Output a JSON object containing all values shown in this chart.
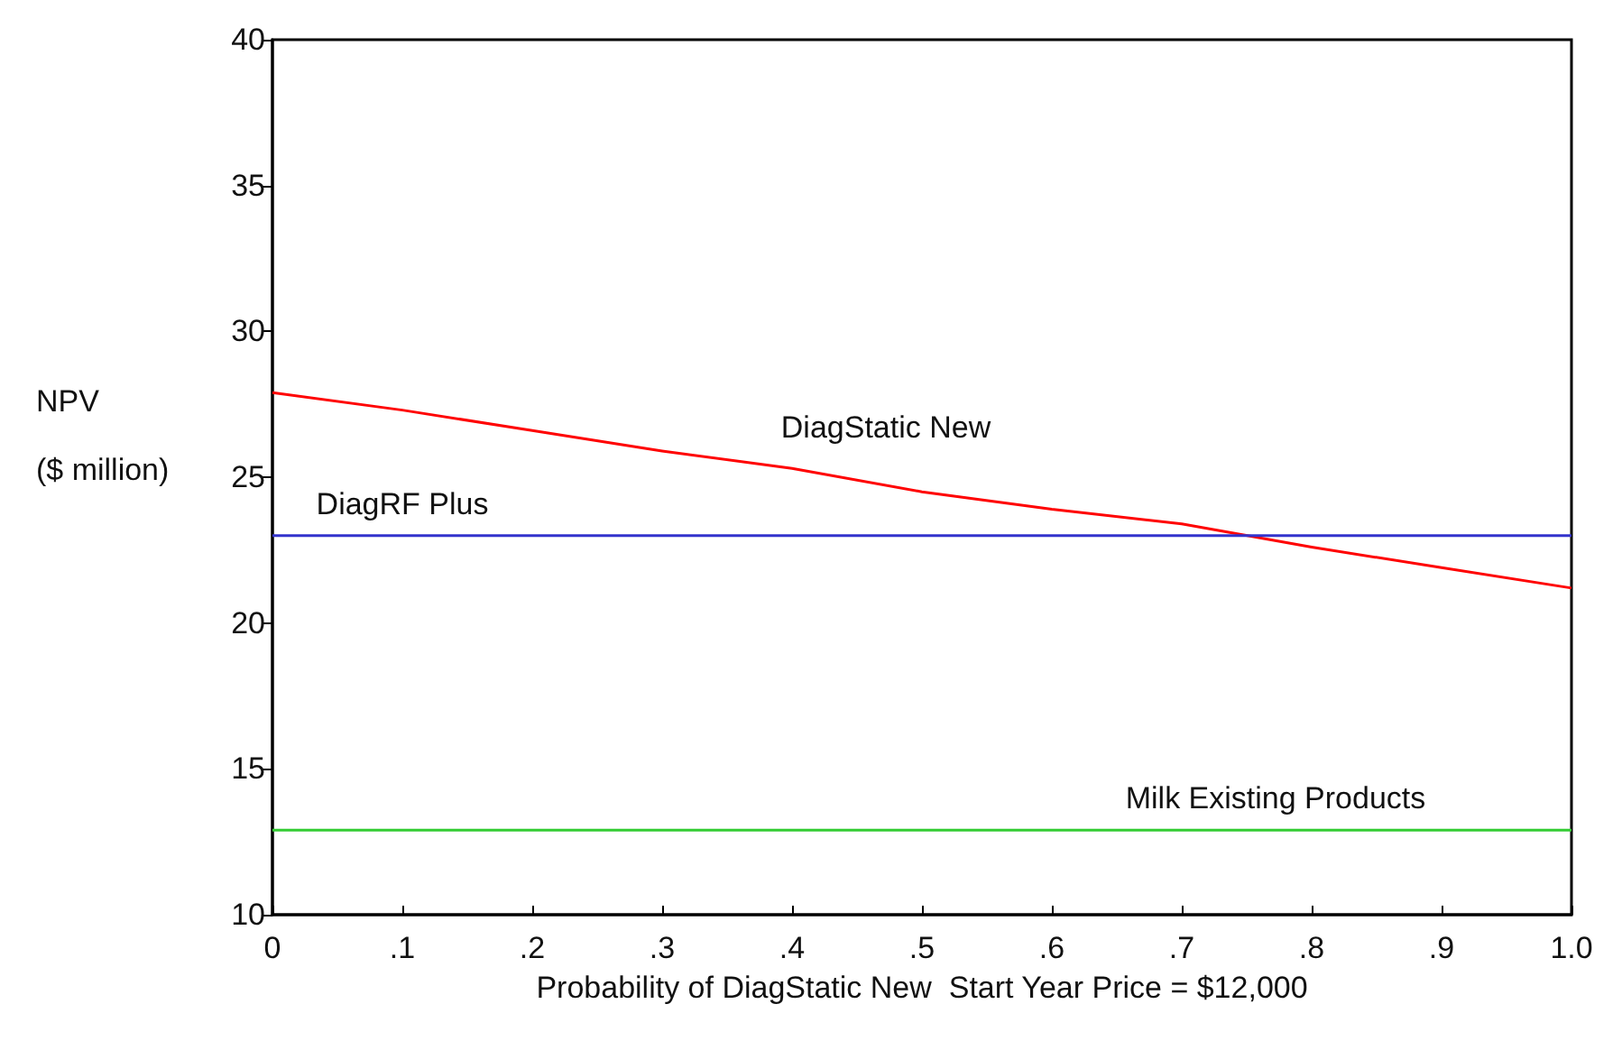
{
  "chart_data": {
    "type": "line",
    "xlabel": "Probability of DiagStatic New  Start Year Price = $12,000",
    "ylabel": "NPV\n\n($ million)",
    "x": [
      0,
      0.1,
      0.2,
      0.3,
      0.4,
      0.5,
      0.6,
      0.7,
      0.8,
      0.9,
      1.0
    ],
    "series": [
      {
        "name": "DiagStatic New",
        "color": "#ff0000",
        "values": [
          27.9,
          27.3,
          26.6,
          25.9,
          25.3,
          24.5,
          23.9,
          23.4,
          22.6,
          21.9,
          21.2
        ]
      },
      {
        "name": "DiagRF Plus",
        "color": "#3333cc",
        "values": [
          23,
          23,
          23,
          23,
          23,
          23,
          23,
          23,
          23,
          23,
          23
        ]
      },
      {
        "name": "Milk Existing Products",
        "color": "#33cc33",
        "values": [
          12.9,
          12.9,
          12.9,
          12.9,
          12.9,
          12.9,
          12.9,
          12.9,
          12.9,
          12.9,
          12.9
        ]
      }
    ],
    "xlim": [
      0,
      1.0
    ],
    "xticks": [
      0,
      {
        "value": 0.1,
        "label": ".1"
      },
      {
        "value": 0.2,
        "label": ".2"
      },
      {
        "value": 0.3,
        "label": ".3"
      },
      {
        "value": 0.4,
        "label": ".4"
      },
      {
        "value": 0.5,
        "label": ".5"
      },
      {
        "value": 0.6,
        "label": ".6"
      },
      {
        "value": 0.7,
        "label": ".7"
      },
      {
        "value": 0.8,
        "label": ".8"
      },
      {
        "value": 0.9,
        "label": ".9"
      },
      {
        "value": 1.0,
        "label": "1.0"
      }
    ],
    "ylim": [
      10,
      40
    ],
    "yticks": [
      10,
      15,
      20,
      25,
      30,
      35,
      40
    ],
    "grid": false,
    "legend": false,
    "marker": "none",
    "line_style": "solid"
  }
}
